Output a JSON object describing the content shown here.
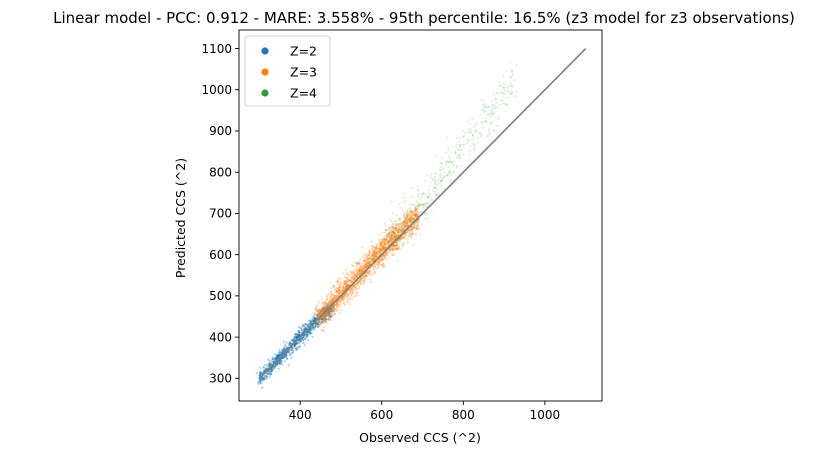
{
  "chart_data": {
    "type": "scatter",
    "title": "Linear model - PCC: 0.912 - MARE: 3.558% - 95th percentile: 16.5% (z3 model for z3 observations)",
    "xlabel": "Observed CCS (^2)",
    "ylabel": "Predicted CCS (^2)",
    "xlim": [
      250,
      1140
    ],
    "ylim": [
      245,
      1145
    ],
    "xticks": [
      400,
      600,
      800,
      1000
    ],
    "yticks": [
      300,
      400,
      500,
      600,
      700,
      800,
      900,
      1000,
      1100
    ],
    "grid": false,
    "legend_position": "top-left",
    "series": [
      {
        "name": "Z=2",
        "color": "#1f77b4",
        "description_points": [
          [
            300,
            298
          ],
          [
            320,
            318
          ],
          [
            340,
            340
          ],
          [
            360,
            362
          ],
          [
            380,
            380
          ],
          [
            400,
            400
          ],
          [
            420,
            418
          ],
          [
            440,
            440
          ],
          [
            460,
            458
          ],
          [
            480,
            470
          ]
        ]
      },
      {
        "name": "Z=3",
        "color": "#ff7f0e",
        "description_points": [
          [
            440,
            445
          ],
          [
            470,
            470
          ],
          [
            500,
            505
          ],
          [
            520,
            525
          ],
          [
            540,
            545
          ],
          [
            560,
            565
          ],
          [
            580,
            590
          ],
          [
            600,
            610
          ],
          [
            620,
            630
          ],
          [
            650,
            655
          ],
          [
            680,
            690
          ]
        ]
      },
      {
        "name": "Z=4",
        "color": "#2ca02c",
        "description_points": [
          [
            620,
            640
          ],
          [
            660,
            680
          ],
          [
            700,
            720
          ],
          [
            720,
            750
          ],
          [
            740,
            780
          ],
          [
            760,
            800
          ],
          [
            780,
            830
          ],
          [
            800,
            860
          ],
          [
            830,
            900
          ],
          [
            880,
            960
          ],
          [
            920,
            1020
          ]
        ]
      }
    ],
    "reference_line": {
      "x": [
        300,
        1100
      ],
      "y": [
        300,
        1100
      ],
      "color": "#808080"
    }
  }
}
